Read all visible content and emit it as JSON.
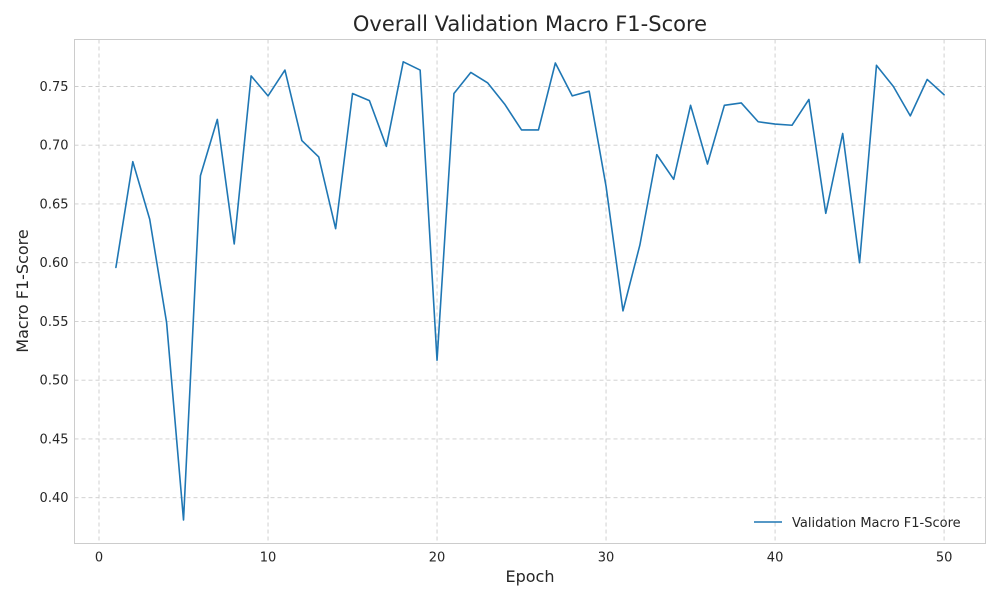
{
  "chart_data": {
    "type": "line",
    "title": "Overall Validation Macro F1-Score",
    "xlabel": "Epoch",
    "ylabel": "Macro F1-Score",
    "xlim": [
      -1.45,
      52.45
    ],
    "ylim": [
      0.361,
      0.79
    ],
    "xticks": [
      0,
      10,
      20,
      30,
      40,
      50
    ],
    "yticks": [
      0.4,
      0.45,
      0.5,
      0.55,
      0.6,
      0.65,
      0.7,
      0.75
    ],
    "grid": true,
    "legend_position": "lower-right",
    "x": [
      1,
      2,
      3,
      4,
      5,
      6,
      7,
      8,
      9,
      10,
      11,
      12,
      13,
      14,
      15,
      16,
      17,
      18,
      19,
      20,
      21,
      22,
      23,
      24,
      25,
      26,
      27,
      28,
      29,
      30,
      31,
      32,
      33,
      34,
      35,
      36,
      37,
      38,
      39,
      40,
      41,
      42,
      43,
      44,
      45,
      46,
      47,
      48,
      49,
      50
    ],
    "series": [
      {
        "name": "Validation Macro F1-Score",
        "color": "#1f77b4",
        "values": [
          0.596,
          0.686,
          0.637,
          0.549,
          0.381,
          0.674,
          0.722,
          0.616,
          0.759,
          0.742,
          0.764,
          0.704,
          0.69,
          0.629,
          0.744,
          0.738,
          0.699,
          0.771,
          0.764,
          0.517,
          0.744,
          0.762,
          0.753,
          0.735,
          0.713,
          0.713,
          0.77,
          0.742,
          0.746,
          0.665,
          0.559,
          0.615,
          0.692,
          0.671,
          0.734,
          0.684,
          0.734,
          0.736,
          0.72,
          0.718,
          0.717,
          0.739,
          0.642,
          0.71,
          0.6,
          0.768,
          0.75,
          0.725,
          0.756,
          0.743
        ]
      }
    ]
  }
}
